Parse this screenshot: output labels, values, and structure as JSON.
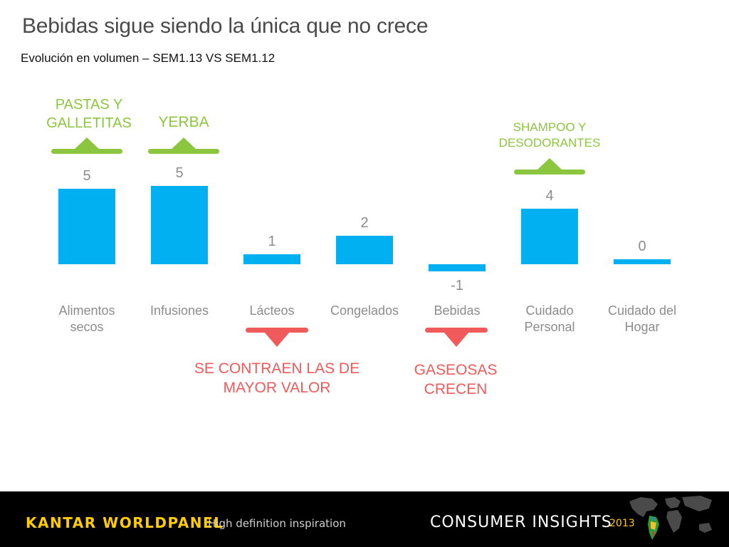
{
  "slide": {
    "title": "Bebidas sigue siendo la única que no crece",
    "subtitle": "Evolución en volumen – SEM1.13 VS SEM1.12"
  },
  "chart_data": {
    "type": "bar",
    "categories": [
      [
        "Alimentos",
        "secos"
      ],
      [
        "Infusiones"
      ],
      [
        "Lácteos"
      ],
      [
        "Congelados"
      ],
      [
        "Bebidas"
      ],
      [
        "Cuidado",
        "Personal"
      ],
      [
        "Cuidado del",
        "Hogar"
      ]
    ],
    "values": [
      5,
      5,
      1,
      2,
      -1,
      4,
      0
    ],
    "plotted_values": [
      5.3,
      5.5,
      0.7,
      2.0,
      -0.5,
      3.9,
      0.35
    ],
    "value_labels": [
      "5",
      "5",
      "1",
      "2",
      "-1",
      "4",
      "0"
    ],
    "bar_color": "#00b0f0",
    "label_color": "#8c8c8c",
    "grid": false,
    "legend": "none"
  },
  "callouts": {
    "up": [
      {
        "text": "PASTAS Y GALLETITAS",
        "category_index": 0
      },
      {
        "text": "YERBA",
        "category_index": 1
      },
      {
        "text": "SHAMPOO Y DESODORANTES",
        "category_index": 5
      }
    ],
    "down": [
      {
        "text": "SE CONTRAEN LAS DE MAYOR VALOR",
        "category_index": 2
      },
      {
        "text": "GASEOSAS CRECEN",
        "category_index": 4
      }
    ],
    "up_color": "#8cc63f",
    "down_color": "#f05a5a"
  },
  "footer": {
    "brand": "KANTAR WORLDPANEL",
    "tagline": "High definition inspiration",
    "section": "CONSUMER INSIGHTS",
    "year": "2013",
    "background": "#000000",
    "accent": "#ffcc00"
  }
}
